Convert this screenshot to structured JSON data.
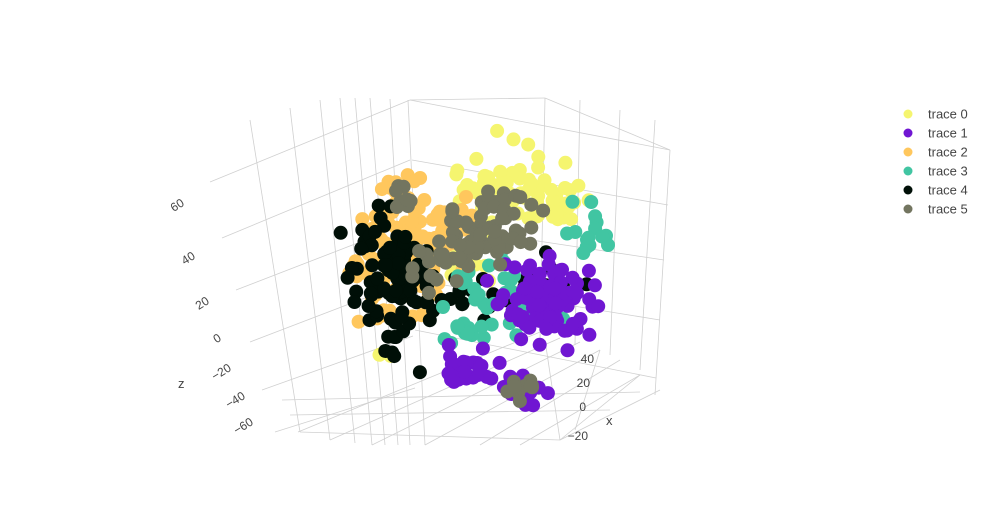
{
  "chart_data": {
    "type": "scatter",
    "subtype": "scatter3d",
    "grid": true,
    "legend_position": "top-right",
    "axes": {
      "x": {
        "title": "x",
        "ticks": [
          "−20",
          "0",
          "20",
          "40"
        ]
      },
      "y": {
        "title": "",
        "ticks": []
      },
      "z": {
        "title": "z",
        "ticks": [
          "60",
          "40",
          "20",
          "0",
          "−20",
          "−40",
          "−60"
        ]
      }
    },
    "series": [
      {
        "name": "trace 0",
        "color": "#f5f56f"
      },
      {
        "name": "trace 1",
        "color": "#7016d2"
      },
      {
        "name": "trace 2",
        "color": "#ffc75d"
      },
      {
        "name": "trace 3",
        "color": "#41c5a2"
      },
      {
        "name": "trace 4",
        "color": "#000f07"
      },
      {
        "name": "trace 5",
        "color": "#737560"
      }
    ]
  }
}
